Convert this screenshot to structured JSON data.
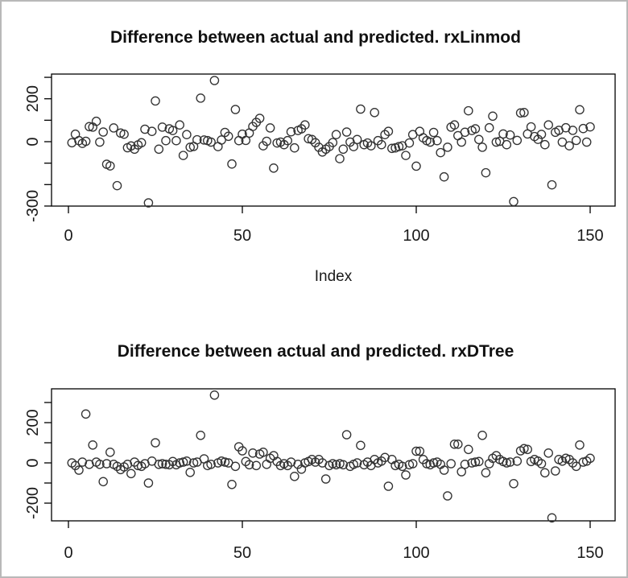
{
  "window": {
    "background": "#ffffff",
    "border_color": "#b9b9b9",
    "foreground": "#000000"
  },
  "chart_data": [
    {
      "type": "scatter",
      "title": "Difference between actual and predicted. rxLinmod",
      "xlabel": "Index",
      "ylabel": "",
      "marker": "open-circle",
      "point_color": "#333333",
      "grid": false,
      "legend": "none",
      "xlim": [
        -5,
        156
      ],
      "ylim": [
        -310,
        315
      ],
      "x_ticks": [
        0,
        50,
        100,
        150
      ],
      "y_ticks": [
        300,
        200,
        100,
        0,
        -100,
        -200,
        -300
      ],
      "y_tick_labels": [
        200,
        0,
        -300
      ],
      "x_start": 1,
      "values": [
        -5,
        35,
        5,
        -8,
        2,
        70,
        68,
        95,
        -2,
        45,
        -105,
        -113,
        64,
        -205,
        40,
        35,
        -28,
        -20,
        -35,
        -15,
        -5,
        58,
        -285,
        48,
        190,
        -35,
        68,
        5,
        60,
        52,
        5,
        78,
        -64,
        33,
        -26,
        -22,
        9,
        203,
        8,
        5,
        -2,
        285,
        -23,
        8,
        43,
        25,
        -104,
        150,
        5,
        35,
        6,
        40,
        71,
        90,
        109,
        -19,
        2,
        64,
        -123,
        -6,
        -2,
        -14,
        5,
        46,
        -29,
        52,
        60,
        78,
        14,
        10,
        -5,
        -26,
        -48,
        -35,
        -23,
        -4,
        33,
        -79,
        -35,
        45,
        -2,
        -23,
        10,
        152,
        -14,
        -6,
        -19,
        136,
        5,
        -14,
        33,
        48,
        -31,
        -29,
        -23,
        -19,
        -64,
        -6,
        33,
        -114,
        48,
        18,
        5,
        -2,
        43,
        5,
        -51,
        -164,
        -26,
        68,
        78,
        28,
        -2,
        44,
        144,
        52,
        60,
        10,
        -26,
        -145,
        65,
        119,
        -2,
        2,
        36,
        -14,
        31,
        -279,
        6,
        134,
        136,
        36,
        69,
        24,
        11,
        34,
        -14,
        78,
        -201,
        44,
        53,
        -2,
        65,
        -19,
        53,
        6,
        149,
        61,
        -2,
        69
      ]
    },
    {
      "type": "scatter",
      "title": "Difference between actual and predicted. rxDTree",
      "xlabel": "",
      "ylabel": "",
      "marker": "open-circle",
      "point_color": "#333333",
      "grid": false,
      "legend": "none",
      "xlim": [
        -5,
        156
      ],
      "ylim": [
        -290,
        370
      ],
      "x_ticks": [
        0,
        50,
        100,
        150
      ],
      "y_ticks": [
        300,
        200,
        100,
        0,
        -100,
        -200
      ],
      "y_tick_labels": [
        200,
        0,
        -200
      ],
      "x_start": 1,
      "values": [
        0,
        -13,
        -36,
        4,
        243,
        -7,
        89,
        4,
        -7,
        -93,
        -4,
        53,
        -7,
        -17,
        -33,
        -20,
        -7,
        -53,
        4,
        -13,
        -17,
        -4,
        -100,
        9,
        100,
        -7,
        -4,
        -7,
        -9,
        7,
        -9,
        0,
        4,
        9,
        -47,
        0,
        4,
        137,
        20,
        -13,
        -7,
        337,
        0,
        9,
        4,
        0,
        -107,
        -17,
        80,
        60,
        7,
        -9,
        49,
        -13,
        44,
        53,
        -7,
        23,
        36,
        7,
        -13,
        -4,
        -13,
        4,
        -67,
        -7,
        -31,
        0,
        7,
        17,
        4,
        17,
        0,
        -80,
        -13,
        -4,
        -9,
        -4,
        -9,
        140,
        -17,
        -7,
        0,
        87,
        -9,
        4,
        -13,
        17,
        0,
        9,
        27,
        -116,
        17,
        -13,
        -7,
        -17,
        -60,
        -9,
        -4,
        58,
        58,
        17,
        -4,
        -9,
        0,
        4,
        -7,
        -36,
        -164,
        -4,
        93,
        93,
        -44,
        -7,
        67,
        0,
        4,
        7,
        137,
        -49,
        -4,
        23,
        36,
        17,
        7,
        0,
        4,
        -103,
        9,
        60,
        71,
        67,
        7,
        17,
        9,
        -4,
        -49,
        49,
        -273,
        -40,
        17,
        9,
        23,
        17,
        0,
        -17,
        89,
        4,
        9,
        23
      ]
    }
  ]
}
